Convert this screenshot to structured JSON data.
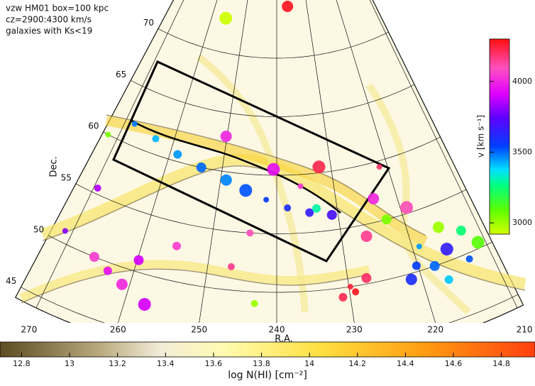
{
  "chart_data": {
    "type": "scatter",
    "annotations": [
      "vzw HM01 box=100 kpc",
      "cz=2900:4300 km/s",
      "galaxies with Ks<19"
    ],
    "x_label": "R.A.",
    "y_label": "Dec.",
    "xlim": [
      272.8,
      209.2
    ],
    "ylim": [
      44,
      75.5
    ],
    "xticks": [
      270,
      260,
      250,
      240,
      230,
      220,
      210
    ],
    "yticks": [
      45,
      50,
      55,
      60,
      65,
      70
    ],
    "ra": [
      268.2,
      263.4,
      258.6,
      253.8,
      249,
      245.4,
      241.8,
      238.2,
      234.6,
      231,
      250.2,
      240.6,
      235.8,
      244.2,
      255,
      259.8,
      223.8,
      219,
      229.8,
      229.2,
      231,
      227.4,
      226.2,
      232.2,
      221.4,
      246.6,
      220.2,
      217.8,
      221.4,
      215.4,
      219,
      213,
      216.6,
      222.6,
      215.4,
      211,
      271.8,
      243,
      263.4,
      265.8,
      261,
      257.4,
      271,
      269.4,
      233.4,
      212.5,
      236.4,
      255.8
    ],
    "dec": [
      61.8,
      61.3,
      60.6,
      60,
      59.3,
      58.6,
      57.9,
      57.2,
      56.7,
      56.3,
      63,
      60.5,
      59,
      55,
      53,
      51,
      57,
      55.5,
      50,
      49.5,
      49.2,
      50.5,
      54,
      60.5,
      59.5,
      52,
      50.5,
      50,
      49.5,
      51,
      52,
      49.5,
      48.5,
      55,
      53,
      50.5,
      60,
      49,
      49.3,
      50,
      48.6,
      47.5,
      51,
      55.5,
      57,
      52,
      74.4,
      72.9
    ],
    "v": [
      3480,
      3420,
      3450,
      3500,
      3470,
      3520,
      3560,
      3600,
      3650,
      3700,
      4000,
      3950,
      4050,
      4100,
      4050,
      3900,
      4000,
      4100,
      4250,
      4280,
      4220,
      4200,
      4150,
      4230,
      4200,
      4150,
      3550,
      3500,
      3600,
      3650,
      3450,
      3520,
      3400,
      3050,
      3000,
      3100,
      3050,
      3000,
      3950,
      4050,
      4000,
      3900,
      3800,
      3850,
      3300,
      3250,
      4280,
      2930
    ],
    "colorbar": {
      "label": "v [km s⁻¹]",
      "lim": [
        2920,
        4300
      ],
      "ticks": [
        3000,
        3500,
        4000
      ]
    },
    "colorbar2": {
      "label": "log N(HI) [cm⁻²]",
      "lim": [
        12.71,
        14.94
      ],
      "ticks": [
        12.8,
        13,
        13.2,
        13.4,
        13.6,
        13.8,
        14,
        14.2,
        14.4,
        14.6,
        14.8
      ]
    }
  }
}
